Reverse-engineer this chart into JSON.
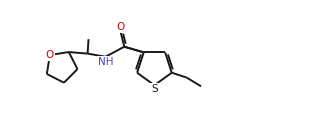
{
  "background_color": "#ffffff",
  "line_color": "#1a1a1a",
  "O_color": "#cc0000",
  "N_color": "#4444cc",
  "S_color": "#1a1a1a",
  "line_width": 1.4,
  "font_size": 7.5,
  "figsize": [
    3.36,
    1.25
  ],
  "dpi": 100,
  "xlim": [
    0.0,
    10.5
  ],
  "ylim": [
    0.2,
    3.5
  ]
}
